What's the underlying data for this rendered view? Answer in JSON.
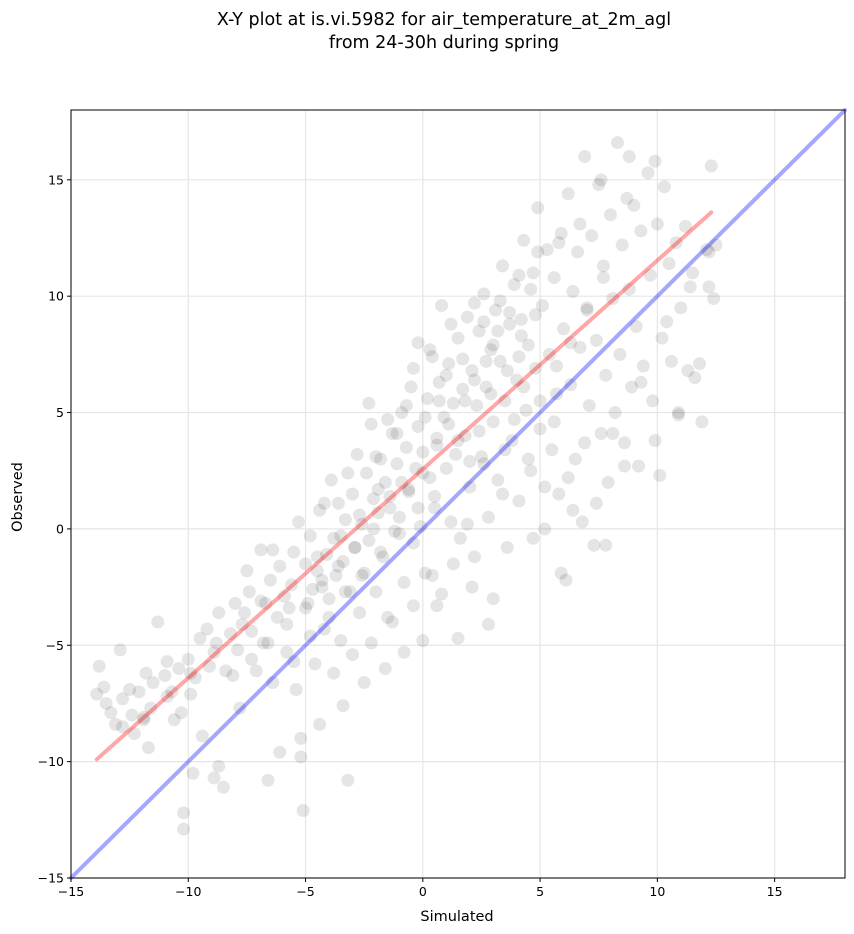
{
  "chart_data": {
    "type": "scatter",
    "title_line1": "X-Y plot at is.vi.5982 for air_temperature_at_2m_agl",
    "title_line2": "from 24-30h during spring",
    "xlabel": "Simulated",
    "ylabel": "Observed",
    "xlim": [
      -15,
      18
    ],
    "ylim": [
      -15,
      18
    ],
    "xticks": [
      -15,
      -10,
      -5,
      0,
      5,
      10,
      15
    ],
    "yticks": [
      -15,
      -10,
      -5,
      0,
      5,
      10,
      15
    ],
    "xtick_labels": [
      "−15",
      "−10",
      "−5",
      "0",
      "5",
      "10",
      "15"
    ],
    "ytick_labels": [
      "−15",
      "−10",
      "−5",
      "0",
      "5",
      "10",
      "15"
    ],
    "grid": true,
    "point_color": "#000000",
    "point_alpha": 0.1,
    "identity_line": {
      "from": [
        -15,
        -15
      ],
      "to": [
        18,
        18
      ],
      "color": "#0000ff"
    },
    "fit_line": {
      "from": [
        -13.9,
        -9.9
      ],
      "to": [
        12.3,
        13.6
      ],
      "color": "#ff0000"
    },
    "points": [
      [
        -13.9,
        -7.1
      ],
      [
        -13.8,
        -5.9
      ],
      [
        -13.5,
        -7.5
      ],
      [
        -13.3,
        -7.9
      ],
      [
        -13.1,
        -8.4
      ],
      [
        -12.9,
        -5.2
      ],
      [
        -12.8,
        -7.3
      ],
      [
        -12.5,
        -6.9
      ],
      [
        -12.3,
        -8.8
      ],
      [
        -12.1,
        -7.0
      ],
      [
        -11.9,
        -8.2
      ],
      [
        -11.8,
        -6.2
      ],
      [
        -11.6,
        -7.7
      ],
      [
        -11.5,
        -6.6
      ],
      [
        -11.3,
        -4.0
      ],
      [
        -11.0,
        -6.3
      ],
      [
        -10.9,
        -5.7
      ],
      [
        -10.7,
        -7.0
      ],
      [
        -10.6,
        -8.2
      ],
      [
        -10.4,
        -6.0
      ],
      [
        -10.2,
        -12.2
      ],
      [
        -10.2,
        -12.9
      ],
      [
        -10.0,
        -5.6
      ],
      [
        -9.9,
        -7.1
      ],
      [
        -9.7,
        -6.4
      ],
      [
        -9.5,
        -4.7
      ],
      [
        -9.4,
        -8.9
      ],
      [
        -9.2,
        -4.3
      ],
      [
        -9.1,
        -5.9
      ],
      [
        -8.9,
        -10.7
      ],
      [
        -8.8,
        -4.9
      ],
      [
        -8.7,
        -3.6
      ],
      [
        -8.5,
        -11.1
      ],
      [
        -8.4,
        -6.1
      ],
      [
        -8.2,
        -4.5
      ],
      [
        -8.0,
        -3.2
      ],
      [
        -7.9,
        -5.2
      ],
      [
        -7.8,
        -7.7
      ],
      [
        -7.6,
        -3.6
      ],
      [
        -7.4,
        -2.7
      ],
      [
        -7.3,
        -4.4
      ],
      [
        -7.1,
        -6.1
      ],
      [
        -6.9,
        -3.1
      ],
      [
        -6.8,
        -4.9
      ],
      [
        -6.6,
        -10.8
      ],
      [
        -6.5,
        -2.2
      ],
      [
        -6.4,
        -0.9
      ],
      [
        -6.2,
        -3.8
      ],
      [
        -6.1,
        -1.6
      ],
      [
        -5.9,
        -2.9
      ],
      [
        -5.8,
        -5.3
      ],
      [
        -5.7,
        -3.4
      ],
      [
        -5.5,
        -1.0
      ],
      [
        -5.4,
        -6.9
      ],
      [
        -5.2,
        -9.8
      ],
      [
        -5.1,
        -12.1
      ],
      [
        -5.0,
        -1.5
      ],
      [
        -4.9,
        -3.2
      ],
      [
        -4.8,
        -0.3
      ],
      [
        -4.7,
        -2.6
      ],
      [
        -4.6,
        -5.8
      ],
      [
        -4.5,
        -1.8
      ],
      [
        -4.4,
        0.8
      ],
      [
        -4.3,
        -2.2
      ],
      [
        -4.2,
        -4.3
      ],
      [
        -4.1,
        -1.1
      ],
      [
        -4.0,
        -3.0
      ],
      [
        -3.9,
        2.1
      ],
      [
        -3.8,
        -0.4
      ],
      [
        -3.7,
        -2.0
      ],
      [
        -3.6,
        1.1
      ],
      [
        -3.5,
        -4.8
      ],
      [
        -3.4,
        -1.4
      ],
      [
        -3.3,
        0.4
      ],
      [
        -3.2,
        -10.8
      ],
      [
        -3.1,
        -2.7
      ],
      [
        -3.0,
        1.5
      ],
      [
        -2.9,
        -0.8
      ],
      [
        -2.8,
        3.2
      ],
      [
        -2.7,
        -3.6
      ],
      [
        -2.6,
        0.2
      ],
      [
        -2.5,
        -1.9
      ],
      [
        -2.4,
        2.4
      ],
      [
        -2.3,
        -0.5
      ],
      [
        -2.2,
        4.5
      ],
      [
        -2.1,
        1.3
      ],
      [
        -2.0,
        -2.7
      ],
      [
        -1.9,
        0.7
      ],
      [
        -1.8,
        3.0
      ],
      [
        -1.7,
        -1.2
      ],
      [
        -1.6,
        2.0
      ],
      [
        -1.5,
        -3.8
      ],
      [
        -1.4,
        1.4
      ],
      [
        -1.3,
        4.1
      ],
      [
        -1.2,
        -0.1
      ],
      [
        -1.1,
        2.8
      ],
      [
        -1.0,
        0.5
      ],
      [
        -0.9,
        5.0
      ],
      [
        -0.8,
        -2.3
      ],
      [
        -0.7,
        3.5
      ],
      [
        -0.6,
        1.7
      ],
      [
        -0.5,
        6.1
      ],
      [
        -0.4,
        -0.6
      ],
      [
        -0.3,
        2.6
      ],
      [
        -0.2,
        4.4
      ],
      [
        -0.1,
        0.1
      ],
      [
        0.0,
        3.3
      ],
      [
        0.1,
        -1.9
      ],
      [
        0.2,
        5.6
      ],
      [
        0.3,
        2.2
      ],
      [
        0.4,
        7.4
      ],
      [
        0.5,
        0.9
      ],
      [
        0.6,
        3.9
      ],
      [
        0.7,
        6.3
      ],
      [
        0.8,
        -2.8
      ],
      [
        0.9,
        4.8
      ],
      [
        1.0,
        2.6
      ],
      [
        1.1,
        7.1
      ],
      [
        1.2,
        0.3
      ],
      [
        1.3,
        5.4
      ],
      [
        1.4,
        3.2
      ],
      [
        1.5,
        8.2
      ],
      [
        1.6,
        -0.4
      ],
      [
        1.7,
        6.0
      ],
      [
        1.8,
        4.0
      ],
      [
        1.9,
        9.1
      ],
      [
        2.0,
        1.8
      ],
      [
        2.1,
        6.8
      ],
      [
        2.2,
        -1.2
      ],
      [
        2.3,
        5.3
      ],
      [
        2.4,
        8.5
      ],
      [
        2.5,
        3.1
      ],
      [
        2.6,
        10.1
      ],
      [
        2.7,
        6.1
      ],
      [
        2.8,
        0.5
      ],
      [
        2.9,
        7.7
      ],
      [
        3.0,
        4.6
      ],
      [
        3.1,
        9.4
      ],
      [
        3.2,
        2.1
      ],
      [
        3.3,
        7.2
      ],
      [
        3.4,
        11.3
      ],
      [
        3.5,
        5.5
      ],
      [
        3.6,
        -0.8
      ],
      [
        3.7,
        8.8
      ],
      [
        3.8,
        3.8
      ],
      [
        3.9,
        10.5
      ],
      [
        4.0,
        6.4
      ],
      [
        4.1,
        1.2
      ],
      [
        4.2,
        9.0
      ],
      [
        4.3,
        12.4
      ],
      [
        4.4,
        5.1
      ],
      [
        4.5,
        7.9
      ],
      [
        4.6,
        2.5
      ],
      [
        4.7,
        11.0
      ],
      [
        4.8,
        6.9
      ],
      [
        4.9,
        13.8
      ],
      [
        5.0,
        4.3
      ],
      [
        5.1,
        9.6
      ],
      [
        5.2,
        0.0
      ],
      [
        5.3,
        12.0
      ],
      [
        5.4,
        7.5
      ],
      [
        5.5,
        3.4
      ],
      [
        5.6,
        10.8
      ],
      [
        5.7,
        5.8
      ],
      [
        5.8,
        1.5
      ],
      [
        5.9,
        12.7
      ],
      [
        6.0,
        8.6
      ],
      [
        6.1,
        -2.2
      ],
      [
        6.2,
        14.4
      ],
      [
        6.3,
        6.2
      ],
      [
        6.4,
        10.2
      ],
      [
        6.5,
        3.0
      ],
      [
        6.6,
        11.9
      ],
      [
        6.7,
        7.8
      ],
      [
        6.8,
        0.3
      ],
      [
        6.9,
        16.0
      ],
      [
        7.0,
        9.4
      ],
      [
        7.1,
        5.3
      ],
      [
        7.2,
        12.6
      ],
      [
        7.3,
        -0.7
      ],
      [
        7.4,
        8.1
      ],
      [
        7.5,
        14.8
      ],
      [
        7.6,
        4.1
      ],
      [
        7.7,
        11.3
      ],
      [
        7.8,
        6.6
      ],
      [
        7.9,
        2.0
      ],
      [
        8.0,
        13.5
      ],
      [
        8.1,
        9.9
      ],
      [
        8.2,
        5.0
      ],
      [
        8.3,
        16.6
      ],
      [
        8.4,
        7.5
      ],
      [
        8.5,
        12.2
      ],
      [
        8.6,
        3.7
      ],
      [
        8.7,
        14.2
      ],
      [
        8.8,
        10.3
      ],
      [
        8.9,
        6.1
      ],
      [
        9.0,
        13.9
      ],
      [
        9.1,
        8.7
      ],
      [
        9.2,
        2.7
      ],
      [
        9.3,
        12.8
      ],
      [
        9.4,
        7.0
      ],
      [
        9.6,
        15.3
      ],
      [
        9.7,
        10.9
      ],
      [
        9.8,
        5.5
      ],
      [
        10.0,
        13.1
      ],
      [
        10.1,
        2.3
      ],
      [
        10.2,
        8.2
      ],
      [
        10.3,
        14.7
      ],
      [
        10.5,
        11.4
      ],
      [
        10.6,
        7.2
      ],
      [
        10.8,
        12.3
      ],
      [
        10.9,
        5.0
      ],
      [
        11.0,
        9.5
      ],
      [
        11.2,
        13.0
      ],
      [
        11.3,
        6.8
      ],
      [
        11.5,
        11.0
      ],
      [
        11.8,
        7.1
      ],
      [
        11.9,
        4.6
      ],
      [
        12.1,
        12.0
      ],
      [
        12.2,
        10.4
      ],
      [
        12.3,
        15.6
      ],
      [
        12.4,
        9.9
      ],
      [
        12.5,
        12.2
      ],
      [
        -0.2,
        8.0
      ],
      [
        0.3,
        7.7
      ],
      [
        -0.7,
        5.3
      ],
      [
        -1.5,
        4.7
      ],
      [
        -2.3,
        5.4
      ],
      [
        0.8,
        9.6
      ],
      [
        1.2,
        8.8
      ],
      [
        2.8,
        -4.1
      ],
      [
        2.1,
        -2.5
      ],
      [
        1.5,
        -4.7
      ],
      [
        0.6,
        -3.3
      ],
      [
        0.0,
        -4.8
      ],
      [
        -0.8,
        -5.3
      ],
      [
        -1.6,
        -6.0
      ],
      [
        -2.5,
        -6.6
      ],
      [
        -3.4,
        -7.6
      ],
      [
        -4.4,
        -8.4
      ],
      [
        -5.2,
        -9.0
      ],
      [
        -6.1,
        -9.6
      ],
      [
        -8.7,
        -10.2
      ],
      [
        -9.8,
        -10.5
      ],
      [
        -10.3,
        -7.9
      ],
      [
        -11.7,
        -9.4
      ],
      [
        -12.4,
        -8.0
      ],
      [
        -13.6,
        -6.8
      ],
      [
        -7.5,
        -1.8
      ],
      [
        -6.9,
        -0.9
      ],
      [
        -5.3,
        0.3
      ],
      [
        -4.2,
        1.1
      ],
      [
        -3.2,
        2.4
      ],
      [
        -2.0,
        3.1
      ],
      [
        -1.1,
        4.1
      ],
      [
        -0.4,
        6.9
      ],
      [
        0.7,
        5.5
      ],
      [
        1.7,
        7.3
      ],
      [
        2.6,
        8.9
      ],
      [
        3.3,
        9.8
      ],
      [
        4.1,
        10.9
      ],
      [
        4.9,
        11.9
      ],
      [
        5.8,
        12.3
      ],
      [
        6.7,
        13.1
      ],
      [
        7.6,
        15.0
      ],
      [
        8.8,
        16.0
      ],
      [
        9.9,
        15.8
      ],
      [
        4.7,
        -0.4
      ],
      [
        5.9,
        -1.9
      ],
      [
        7.8,
        -0.7
      ],
      [
        6.4,
        0.8
      ],
      [
        8.6,
        2.7
      ],
      [
        9.9,
        3.8
      ],
      [
        10.9,
        4.9
      ],
      [
        11.6,
        6.5
      ],
      [
        9.3,
        6.3
      ],
      [
        10.4,
        8.9
      ],
      [
        11.4,
        10.4
      ],
      [
        12.2,
        11.9
      ],
      [
        3.0,
        -3.0
      ],
      [
        1.8,
        5.5
      ],
      [
        2.4,
        4.2
      ],
      [
        3.0,
        7.9
      ],
      [
        3.6,
        6.8
      ],
      [
        4.2,
        8.3
      ],
      [
        4.8,
        9.2
      ],
      [
        2.2,
        9.7
      ],
      [
        1.0,
        6.6
      ],
      [
        0.1,
        4.8
      ],
      [
        -0.9,
        2.0
      ],
      [
        -1.9,
        1.7
      ],
      [
        -2.7,
        0.6
      ],
      [
        -3.5,
        -0.3
      ],
      [
        -4.5,
        -1.2
      ],
      [
        -5.6,
        -2.4
      ],
      [
        -6.7,
        -3.2
      ],
      [
        -7.7,
        -4.1
      ],
      [
        -8.9,
        -5.3
      ],
      [
        -9.9,
        -6.2
      ],
      [
        -10.9,
        -7.2
      ],
      [
        -11.9,
        -8.1
      ],
      [
        -12.8,
        -8.5
      ],
      [
        3.9,
        4.7
      ],
      [
        4.5,
        3.0
      ],
      [
        5.2,
        1.8
      ],
      [
        5.6,
        4.6
      ],
      [
        6.2,
        2.2
      ],
      [
        6.9,
        3.7
      ],
      [
        7.4,
        1.1
      ],
      [
        8.1,
        4.1
      ],
      [
        2.6,
        2.8
      ],
      [
        3.4,
        1.5
      ],
      [
        1.9,
        0.2
      ],
      [
        1.3,
        -1.5
      ],
      [
        0.4,
        -2.0
      ],
      [
        -0.4,
        -3.3
      ],
      [
        -1.3,
        -4.0
      ],
      [
        -2.2,
        -4.9
      ],
      [
        -3.0,
        -5.4
      ],
      [
        -3.8,
        -6.2
      ],
      [
        1.5,
        3.8
      ],
      [
        2.0,
        2.9
      ],
      [
        2.9,
        5.8
      ],
      [
        3.5,
        3.4
      ],
      [
        4.3,
        6.1
      ],
      [
        5.0,
        5.5
      ],
      [
        5.7,
        7.0
      ],
      [
        6.3,
        8.0
      ],
      [
        7.0,
        9.5
      ],
      [
        7.7,
        10.8
      ],
      [
        0.5,
        1.4
      ],
      [
        -0.2,
        0.9
      ],
      [
        -1.0,
        -0.2
      ],
      [
        -1.8,
        -1.0
      ],
      [
        -2.6,
        -2.0
      ],
      [
        -3.3,
        -2.7
      ],
      [
        -4.0,
        -3.8
      ],
      [
        -4.8,
        -4.6
      ],
      [
        -5.5,
        -5.7
      ],
      [
        -6.4,
        -6.6
      ],
      [
        2.2,
        6.4
      ],
      [
        2.7,
        7.2
      ],
      [
        3.2,
        8.5
      ],
      [
        3.7,
        9.3
      ],
      [
        4.1,
        7.4
      ],
      [
        4.6,
        10.3
      ],
      [
        1.1,
        4.5
      ],
      [
        0.6,
        3.6
      ],
      [
        0.0,
        2.4
      ],
      [
        -0.6,
        1.6
      ],
      [
        -1.4,
        0.9
      ],
      [
        -2.1,
        0.0
      ],
      [
        -2.9,
        -0.8
      ],
      [
        -3.6,
        -1.6
      ],
      [
        -4.3,
        -2.5
      ],
      [
        -5.0,
        -3.4
      ],
      [
        -5.8,
        -4.1
      ],
      [
        -6.6,
        -4.9
      ],
      [
        -7.3,
        -5.6
      ],
      [
        -8.1,
        -6.3
      ]
    ]
  }
}
